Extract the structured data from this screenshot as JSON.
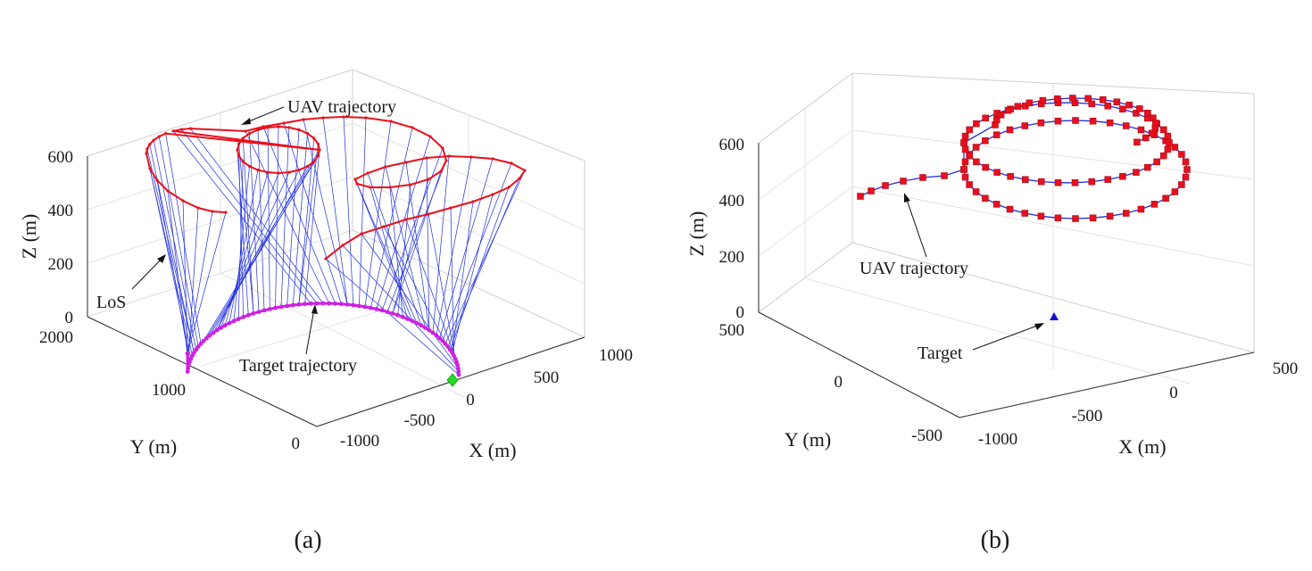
{
  "chart_data": [
    {
      "panel": "(a)",
      "type": "scatter",
      "subtype": "3d-trajectory",
      "title": "",
      "xlabel": "X (m)",
      "ylabel": "Y (m)",
      "zlabel": "Z (m)",
      "xlim": [
        -1000,
        1000
      ],
      "ylim": [
        0,
        2000
      ],
      "zlim": [
        0,
        600
      ],
      "xticks": [
        "-1000",
        "-500",
        "0",
        "500",
        "1000"
      ],
      "yticks": [
        "0",
        "1000",
        "2000"
      ],
      "zticks": [
        "0",
        "200",
        "400",
        "600"
      ],
      "annotations": {
        "uav": "UAV trajectory",
        "los": "LoS",
        "target": "Target trajectory"
      },
      "series": [
        {
          "name": "UAV trajectory",
          "color": "#e8101c",
          "note": "three overlapping loops at ~560-640 m altitude"
        },
        {
          "name": "LoS",
          "color": "#1f2ee0"
        },
        {
          "name": "Target trajectory",
          "color": "#d020e0",
          "note": "semicircular ground path from (0,0) to (0,2000)"
        },
        {
          "name": "Target start",
          "color": "#22dd22",
          "x": 0,
          "y": 0,
          "z": 0
        }
      ]
    },
    {
      "panel": "(b)",
      "type": "scatter",
      "subtype": "3d-trajectory",
      "title": "",
      "xlabel": "X (m)",
      "ylabel": "Y (m)",
      "zlabel": "Z (m)",
      "xlim": [
        -1000,
        500
      ],
      "ylim": [
        -500,
        500
      ],
      "zlim": [
        0,
        600
      ],
      "xticks": [
        "-1000",
        "-500",
        "0",
        "500"
      ],
      "yticks": [
        "-500",
        "0",
        "500"
      ],
      "zticks": [
        "0",
        "200",
        "400",
        "600"
      ],
      "annotations": {
        "uav": "UAV trajectory",
        "target": "Target"
      },
      "series": [
        {
          "name": "UAV trajectory",
          "color": "#e8101c",
          "line_color": "#1f2ee0",
          "note": "approach path then spiral loops around target at ~450-600 m"
        },
        {
          "name": "Target",
          "color": "#1010d0",
          "x": 0,
          "y": 0,
          "z": 0
        }
      ]
    }
  ]
}
